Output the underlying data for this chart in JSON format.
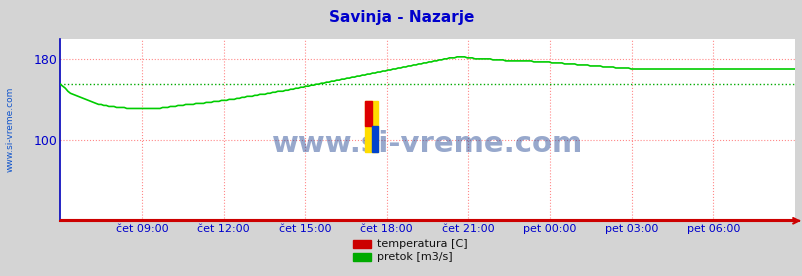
{
  "title": "Savinja - Nazarje",
  "title_color": "#0000cc",
  "bg_color": "#d4d4d4",
  "plot_bg_color": "#ffffff",
  "grid_color": "#ff8888",
  "ylabel_color": "#0000cc",
  "xlabel_color": "#0000cc",
  "watermark": "www.si-vreme.com",
  "watermark_color": "#1a3f8f",
  "watermark_alpha": 0.45,
  "ylim": [
    20,
    200
  ],
  "yticks": [
    100,
    180
  ],
  "xtick_labels": [
    "čet 09:00",
    "čet 12:00",
    "čet 15:00",
    "čet 18:00",
    "čet 21:00",
    "pet 00:00",
    "pet 03:00",
    "pet 06:00"
  ],
  "n_xticks": 8,
  "legend_items": [
    "temperatura [C]",
    "pretok [m3/s]"
  ],
  "legend_colors": [
    "#cc0000",
    "#00aa00"
  ],
  "avg_line_value": 155,
  "avg_line_color": "#00aa00",
  "pretok_color": "#00cc00",
  "temperatura_color": "#cc0000",
  "left_label": "www.si-vreme.com",
  "left_label_color": "#1155cc",
  "spine_bottom_color": "#cc0000",
  "spine_left_color": "#0000bb",
  "pretok_data": [
    155,
    153,
    151,
    148,
    146,
    145,
    144,
    143,
    142,
    141,
    140,
    139,
    138,
    137,
    136,
    135,
    135,
    134,
    134,
    133,
    133,
    133,
    132,
    132,
    132,
    132,
    131,
    131,
    131,
    131,
    131,
    131,
    131,
    131,
    131,
    131,
    131,
    131,
    131,
    131,
    132,
    132,
    132,
    133,
    133,
    133,
    134,
    134,
    134,
    135,
    135,
    135,
    135,
    136,
    136,
    136,
    136,
    137,
    137,
    137,
    138,
    138,
    138,
    139,
    139,
    139,
    140,
    140,
    140,
    141,
    141,
    142,
    142,
    143,
    143,
    143,
    144,
    144,
    145,
    145,
    145,
    146,
    146,
    147,
    147,
    148,
    148,
    148,
    149,
    149,
    150,
    150,
    151,
    151,
    152,
    152,
    153,
    153,
    154,
    154,
    155,
    155,
    156,
    156,
    157,
    157,
    158,
    158,
    159,
    159,
    160,
    160,
    161,
    161,
    162,
    162,
    163,
    163,
    164,
    164,
    165,
    165,
    166,
    166,
    167,
    167,
    168,
    168,
    169,
    169,
    170,
    170,
    171,
    171,
    172,
    172,
    173,
    173,
    174,
    174,
    175,
    175,
    176,
    176,
    177,
    177,
    178,
    178,
    179,
    179,
    180,
    180,
    181,
    181,
    181,
    182,
    182,
    182,
    182,
    181,
    181,
    181,
    180,
    180,
    180,
    180,
    180,
    180,
    180,
    179,
    179,
    179,
    179,
    179,
    178,
    178,
    178,
    178,
    178,
    178,
    178,
    178,
    178,
    178,
    178,
    177,
    177,
    177,
    177,
    177,
    177,
    177,
    176,
    176,
    176,
    176,
    176,
    175,
    175,
    175,
    175,
    175,
    174,
    174,
    174,
    174,
    174,
    173,
    173,
    173,
    173,
    173,
    172,
    172,
    172,
    172,
    172,
    171,
    171,
    171,
    171,
    171,
    171,
    170,
    170,
    170,
    170,
    170,
    170,
    170,
    170,
    170,
    170,
    170,
    170,
    170,
    170,
    170,
    170,
    170,
    170,
    170,
    170,
    170,
    170,
    170,
    170,
    170,
    170,
    170,
    170,
    170,
    170,
    170,
    170,
    170,
    170,
    170,
    170,
    170,
    170,
    170,
    170,
    170,
    170,
    170,
    170,
    170,
    170,
    170,
    170,
    170,
    170,
    170,
    170,
    170,
    170,
    170,
    170,
    170,
    170,
    170,
    170,
    170,
    170,
    170,
    170,
    170
  ]
}
